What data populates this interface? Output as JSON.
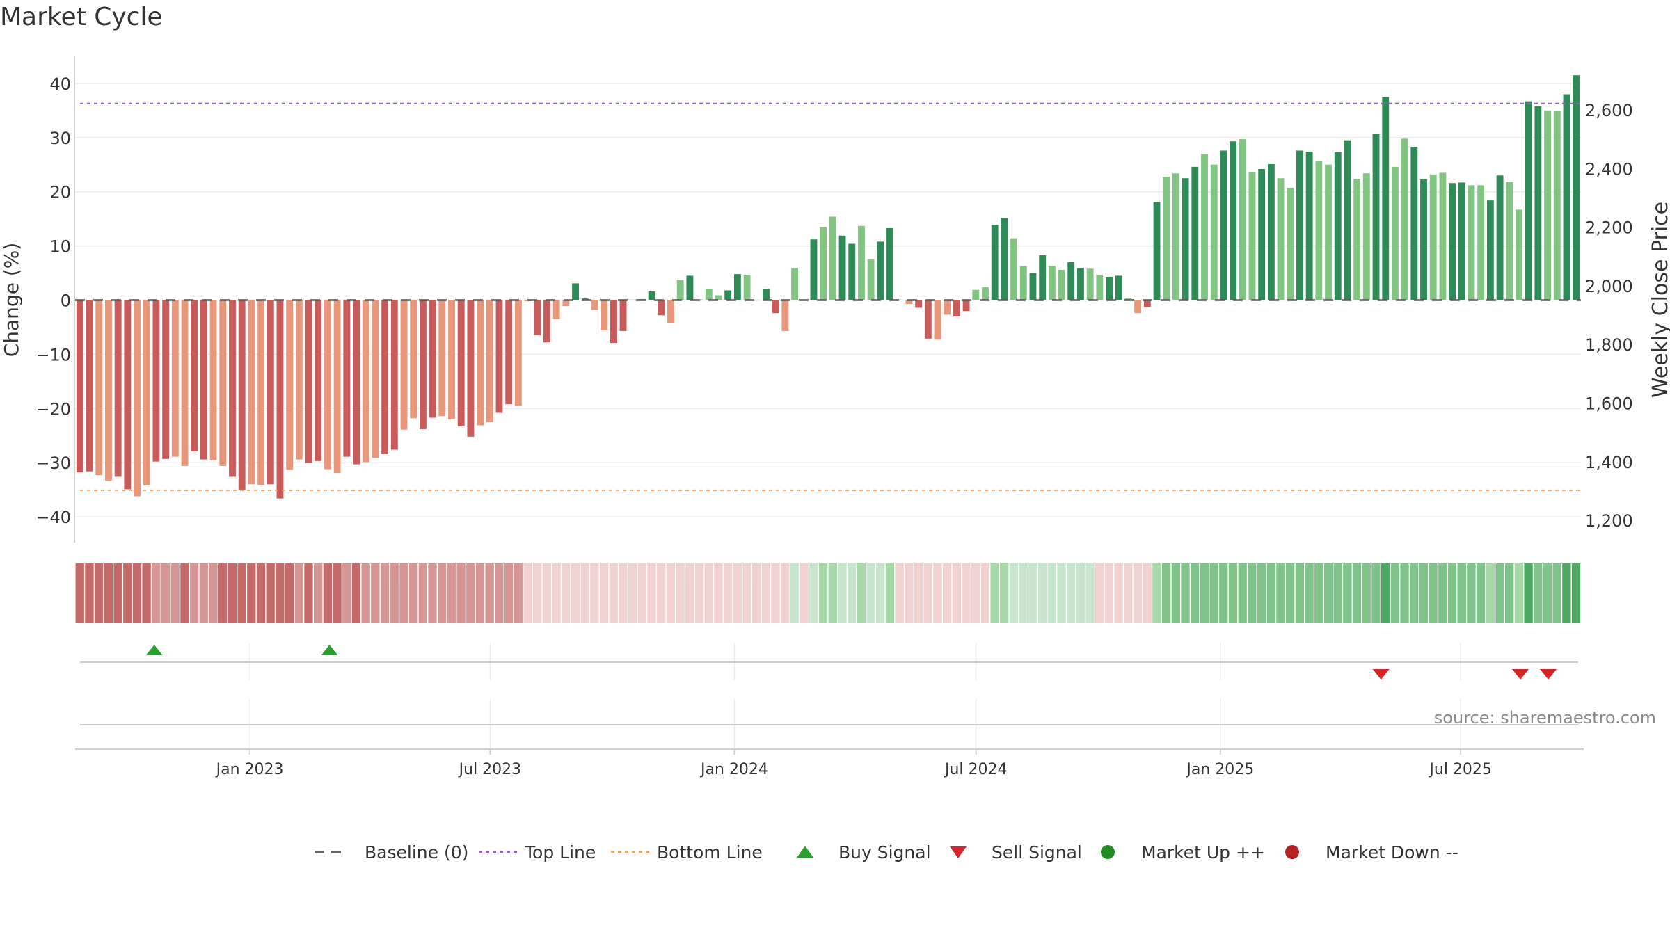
{
  "chart_data": {
    "title": "Market Cycle",
    "type": "bar",
    "y_left": {
      "label": "Change (%)",
      "ticks": [
        40,
        30,
        20,
        10,
        0,
        -10,
        -20,
        -30,
        -40
      ],
      "tick_labels": [
        "40",
        "30",
        "20",
        "10",
        "0",
        "−10",
        "−20",
        "−30",
        "−40"
      ],
      "range": [
        -45,
        45
      ]
    },
    "y_right": {
      "label": "Weekly Close Price",
      "ticks": [
        2600,
        2400,
        2200,
        2000,
        1800,
        1600,
        1400,
        1200
      ],
      "tick_labels": [
        "2,600",
        "2,400",
        "2,200",
        "2,000",
        "1,800",
        "1,600",
        "1,400",
        "1,200"
      ]
    },
    "x_axis": {
      "start": "2022-08-26",
      "end": "2025-09-26",
      "tick_dates": [
        "2023-01-01",
        "2023-07-01",
        "2024-01-01",
        "2024-07-01",
        "2025-01-01",
        "2025-07-01"
      ],
      "tick_labels": [
        "Jan 2023",
        "Jul 2023",
        "Jan 2024",
        "Jul 2024",
        "Jan 2025",
        "Jul 2025"
      ]
    },
    "reference_lines": {
      "baseline": 0,
      "top_line": 36.3,
      "bottom_line": -35.1
    },
    "series": [
      {
        "name": "Change (%)",
        "values": [
          -31.8,
          -31.6,
          -32.3,
          -33.3,
          -32.6,
          -34.9,
          -36.2,
          -34.2,
          -29.8,
          -29.3,
          -28.9,
          -30.6,
          -27.9,
          -29.4,
          -29.6,
          -30.6,
          -32.6,
          -35.0,
          -34.0,
          -34.1,
          -34.0,
          -36.6,
          -31.3,
          -29.4,
          -30.1,
          -29.7,
          -31.2,
          -31.9,
          -28.9,
          -30.3,
          -29.9,
          -29.1,
          -28.4,
          -27.6,
          -23.9,
          -21.8,
          -23.8,
          -21.7,
          -21.4,
          -22.0,
          -23.3,
          -25.2,
          -23.1,
          -22.5,
          -20.8,
          -19.2,
          -19.5,
          -0.2,
          -6.5,
          -7.8,
          -3.5,
          -1.1,
          3.1,
          0.3,
          -1.8,
          -5.6,
          -7.9,
          -5.7,
          0.1,
          0.2,
          1.6,
          -2.8,
          -4.2,
          3.7,
          4.5,
          0.1,
          2.0,
          0.9,
          1.8,
          4.8,
          4.7,
          0.0,
          2.1,
          -2.4,
          -5.7,
          5.9,
          0.1,
          11.2,
          13.5,
          15.4,
          11.9,
          10.4,
          13.7,
          7.5,
          10.8,
          13.3,
          0.1,
          -0.7,
          -1.4,
          -7.1,
          -7.3,
          -2.7,
          -3.0,
          -2.0,
          1.9,
          2.4,
          13.9,
          15.2,
          11.4,
          6.3,
          5.0,
          8.3,
          6.3,
          5.6,
          7.0,
          5.9,
          5.8,
          4.7,
          4.3,
          4.5,
          0.4,
          -2.4,
          -1.3,
          18.1,
          22.8,
          23.4,
          22.5,
          24.6,
          27.0,
          25.0,
          27.6,
          29.3,
          29.7,
          23.6,
          24.2,
          25.1,
          22.5,
          20.7,
          27.6,
          27.4,
          25.6,
          25.0,
          27.3,
          29.5,
          22.4,
          23.4,
          30.7,
          37.5,
          24.6,
          29.8,
          28.3,
          22.3,
          23.2,
          23.5,
          21.6,
          21.7,
          21.2,
          21.2,
          18.4,
          23.0,
          21.8,
          16.7,
          36.7,
          35.8,
          35.0,
          34.9,
          38.0,
          41.5
        ]
      }
    ],
    "bar_colors": {
      "strong_negative": "#c95b5b",
      "weak_negative": "#e8977a",
      "strong_positive": "#2e8b57",
      "weak_positive": "#82c482"
    },
    "regime_strip_colors": [
      "#c46a6a",
      "#d69696",
      "#f0d3d0",
      "#c7e6cd",
      "#a6d8a8",
      "#7fc28a",
      "#4da864"
    ],
    "signals": {
      "buy_dates": [
        "2022-10-21",
        "2023-03-02"
      ],
      "sell_dates": [
        "2025-05-02",
        "2025-08-15",
        "2025-09-05"
      ],
      "buy_color": "#2ca02c",
      "sell_color": "#d62728"
    },
    "source_note": "source: sharemaestro.com",
    "legend": {
      "placement": "bottom-center",
      "items": [
        {
          "label": "Baseline (0)",
          "marker": "dash",
          "color": "#666666"
        },
        {
          "label": "Top Line",
          "marker": "dotted",
          "color": "#9b59d0"
        },
        {
          "label": "Bottom Line",
          "marker": "dotted",
          "color": "#f0a050"
        },
        {
          "label": "Buy Signal",
          "marker": "triangle-up",
          "color": "#2ca02c"
        },
        {
          "label": "Sell Signal",
          "marker": "triangle-down",
          "color": "#d62728"
        },
        {
          "label": "Market Up ++",
          "marker": "circle",
          "color": "#228b22"
        },
        {
          "label": "Market Down --",
          "marker": "circle",
          "color": "#b22222"
        }
      ]
    }
  }
}
